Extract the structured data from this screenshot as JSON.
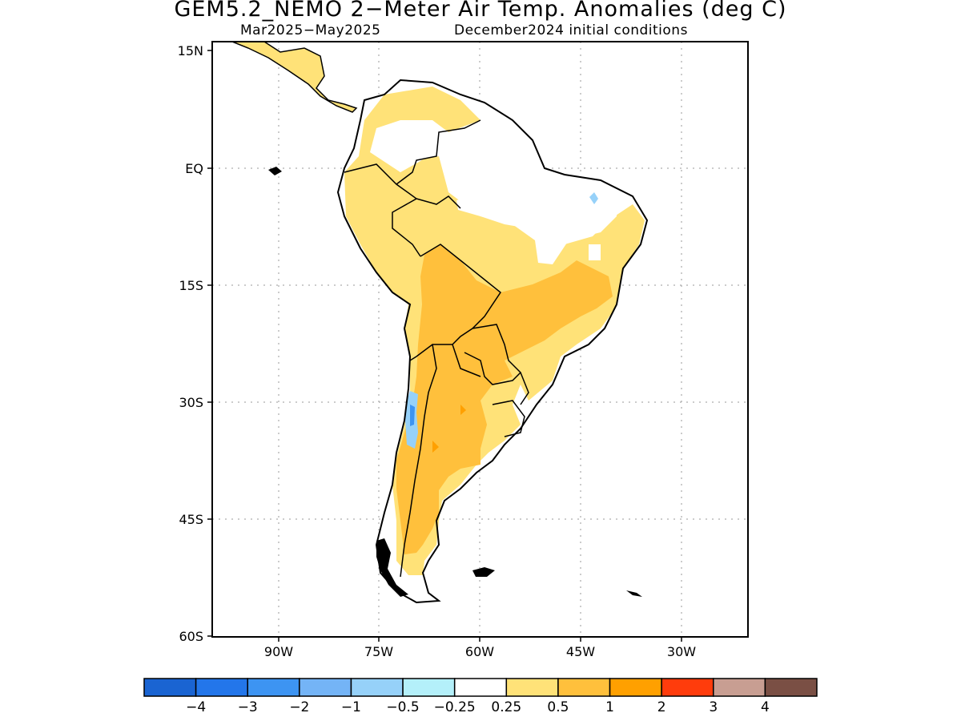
{
  "title": "GEM5.2_NEMO 2−Meter Air Temp. Anomalies (deg C)",
  "subtitle_left": "Mar2025−May2025",
  "subtitle_right": "December2024 initial conditions",
  "map": {
    "lon_range": [
      -97,
      -27
    ],
    "lat_range": [
      -60,
      15
    ],
    "lat_ticks": [
      "15N",
      "EQ",
      "15S",
      "30S",
      "45S",
      "60S"
    ],
    "lon_ticks": [
      "90W",
      "75W",
      "60W",
      "45W",
      "30W"
    ],
    "land_color": "#ffffff",
    "coast_color": "#000000"
  },
  "colorbar": {
    "colors": [
      "#1a64d2",
      "#2376ea",
      "#3d94f2",
      "#74b4f6",
      "#96d1f9",
      "#b4f0fa",
      "#ffffff",
      "#ffe278",
      "#ffc03c",
      "#ffa000",
      "#ff3c0c",
      "#c89e92",
      "#7a4f44"
    ],
    "labels": [
      "−4",
      "−3",
      "−2",
      "−1",
      "−0.5",
      "−0.25",
      "0.25",
      "0.5",
      "1",
      "2",
      "3",
      "4"
    ]
  }
}
